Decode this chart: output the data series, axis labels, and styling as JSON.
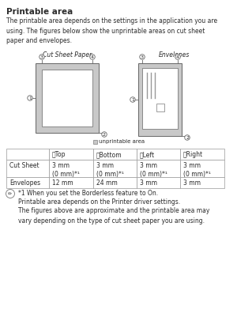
{
  "title": "Printable area",
  "intro_text": "The printable area depends on the settings in the application you are\nusing. The figures below show the unprintable areas on cut sheet\npaper and envelopes.",
  "fig_label_left": "Cut Sheet Paper",
  "fig_label_right": "Envelopes",
  "unprintable_label": "unprintable area",
  "table_headers": [
    "",
    "ⓔTop",
    "ⓕBottom",
    "ⓖLeft",
    "ⓗRight"
  ],
  "table_rows": [
    [
      "Cut Sheet",
      "3 mm\n(0 mm)*¹",
      "3 mm\n(0 mm)*¹",
      "3 mm\n(0 mm)*¹",
      "3 mm\n(0 mm)*¹"
    ],
    [
      "Envelopes",
      "12 mm",
      "24 mm",
      "3 mm",
      "3 mm"
    ]
  ],
  "note_line1": "*1 When you set the Borderless feature to On.",
  "note_line2": "Printable area depends on the Printer driver settings.",
  "note_line3": "The figures above are approximate and the printable area may\nvary depending on the type of cut sheet paper you are using.",
  "bg_color": "#ffffff",
  "text_color": "#2b2b2b",
  "unprintable_color": "#c8c8c8",
  "inner_color": "#ffffff",
  "table_border": "#999999"
}
